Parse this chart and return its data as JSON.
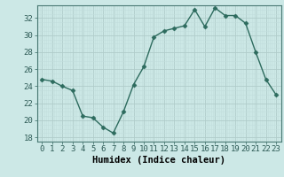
{
  "x": [
    0,
    1,
    2,
    3,
    4,
    5,
    6,
    7,
    8,
    9,
    10,
    11,
    12,
    13,
    14,
    15,
    16,
    17,
    18,
    19,
    20,
    21,
    22,
    23
  ],
  "y": [
    24.8,
    24.6,
    24.0,
    23.5,
    20.5,
    20.3,
    19.2,
    18.5,
    21.0,
    24.2,
    26.3,
    29.8,
    30.5,
    30.8,
    31.1,
    33.0,
    31.0,
    33.2,
    32.3,
    32.3,
    31.4,
    28.0,
    24.8,
    23.0
  ],
  "line_color": "#2d6b5e",
  "marker": "D",
  "marker_size": 2.5,
  "bg_color": "#cce8e6",
  "grid_major_color": "#b0ccca",
  "grid_minor_color": "#c2dedd",
  "xlabel": "Humidex (Indice chaleur)",
  "ylim": [
    17.5,
    33.5
  ],
  "yticks": [
    18,
    20,
    22,
    24,
    26,
    28,
    30,
    32
  ],
  "xticks": [
    0,
    1,
    2,
    3,
    4,
    5,
    6,
    7,
    8,
    9,
    10,
    11,
    12,
    13,
    14,
    15,
    16,
    17,
    18,
    19,
    20,
    21,
    22,
    23
  ],
  "xlabel_fontsize": 7.5,
  "tick_fontsize": 6.5,
  "line_width": 1.0
}
